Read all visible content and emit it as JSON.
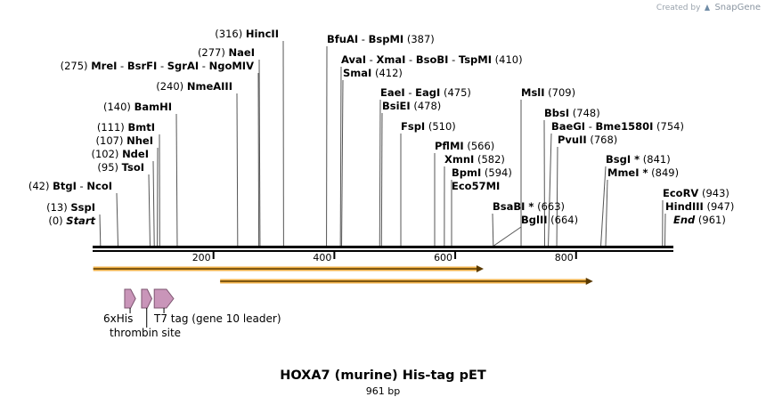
{
  "credit": {
    "prefix": "Created by",
    "brand": "SnapGene"
  },
  "sequence": {
    "length": 961,
    "name": "HOXA7 (murine) His-tag pET",
    "length_label": "961 bp"
  },
  "scale_ticks": [
    {
      "bp": 200,
      "label": "200"
    },
    {
      "bp": 400,
      "label": "400"
    },
    {
      "bp": 600,
      "label": "600"
    },
    {
      "bp": 800,
      "label": "800"
    }
  ],
  "sites": [
    {
      "pos": 0,
      "pos_label": "(0)",
      "names": [
        "Start"
      ],
      "italic": true
    },
    {
      "pos": 13,
      "pos_label": "(13)",
      "names": [
        "SspI"
      ]
    },
    {
      "pos": 42,
      "pos_label": "(42)",
      "names": [
        "BtgI",
        "NcoI"
      ]
    },
    {
      "pos": 95,
      "pos_label": "(95)",
      "names": [
        "TsoI"
      ]
    },
    {
      "pos": 102,
      "pos_label": "(102)",
      "names": [
        "NdeI"
      ]
    },
    {
      "pos": 107,
      "pos_label": "(107)",
      "names": [
        "NheI"
      ]
    },
    {
      "pos": 111,
      "pos_label": "(111)",
      "names": [
        "BmtI"
      ]
    },
    {
      "pos": 140,
      "pos_label": "(140)",
      "names": [
        "BamHI"
      ]
    },
    {
      "pos": 240,
      "pos_label": "(240)",
      "names": [
        "NmeAIII"
      ]
    },
    {
      "pos": 275,
      "pos_label": "(275)",
      "names": [
        "MreI",
        "BsrFI",
        "SgrAI",
        "NgoMIV"
      ]
    },
    {
      "pos": 277,
      "pos_label": "(277)",
      "names": [
        "NaeI"
      ]
    },
    {
      "pos": 316,
      "pos_label": "(316)",
      "names": [
        "HincII"
      ]
    },
    {
      "pos": 387,
      "pos_label": "(387)",
      "names": [
        "BfuAI",
        "BspMI"
      ]
    },
    {
      "pos": 410,
      "pos_label": "(410)",
      "names": [
        "AvaI",
        "XmaI",
        "BsoBI",
        "TspMI"
      ]
    },
    {
      "pos": 412,
      "pos_label": "(412)",
      "names": [
        "SmaI"
      ]
    },
    {
      "pos": 475,
      "pos_label": "(475)",
      "names": [
        "EaeI",
        "EagI"
      ]
    },
    {
      "pos": 478,
      "pos_label": "(478)",
      "names": [
        "BsiEI"
      ]
    },
    {
      "pos": 510,
      "pos_label": "(510)",
      "names": [
        "FspI"
      ]
    },
    {
      "pos": 566,
      "pos_label": "(566)",
      "names": [
        "PflMI"
      ]
    },
    {
      "pos": 582,
      "pos_label": "(582)",
      "names": [
        "XmnI"
      ]
    },
    {
      "pos": 594,
      "pos_label": "(594)",
      "names": [
        "BpmI",
        "Eco57MI"
      ]
    },
    {
      "pos": 663,
      "pos_label": "(663)",
      "names": [
        "BsaBI *"
      ]
    },
    {
      "pos": 664,
      "pos_label": "(664)",
      "names": [
        "BglII"
      ]
    },
    {
      "pos": 709,
      "pos_label": "(709)",
      "names": [
        "MslI"
      ]
    },
    {
      "pos": 748,
      "pos_label": "(748)",
      "names": [
        "BbsI"
      ]
    },
    {
      "pos": 754,
      "pos_label": "(754)",
      "names": [
        "BaeGI",
        "Bme1580I"
      ]
    },
    {
      "pos": 768,
      "pos_label": "(768)",
      "names": [
        "PvuII"
      ]
    },
    {
      "pos": 841,
      "pos_label": "(841)",
      "names": [
        "BsgI *"
      ]
    },
    {
      "pos": 849,
      "pos_label": "(849)",
      "names": [
        "MmeI *"
      ]
    },
    {
      "pos": 943,
      "pos_label": "(943)",
      "names": [
        "EcoRV"
      ]
    },
    {
      "pos": 947,
      "pos_label": "(947)",
      "names": [
        "HindIII"
      ]
    },
    {
      "pos": 961,
      "pos_label": "(961)",
      "names": [
        "End"
      ],
      "italic": true
    }
  ],
  "features": [
    {
      "name": "6xHis",
      "start": 53,
      "end": 71
    },
    {
      "name": "thrombin site",
      "start": 81,
      "end": 98
    },
    {
      "name": "T7 tag (gene 10 leader)",
      "start": 102,
      "end": 134
    }
  ],
  "orfs": [
    {
      "start": 1,
      "end": 647,
      "color": "#f0b24a"
    },
    {
      "start": 211,
      "end": 828,
      "color": "#f0b24a"
    }
  ],
  "colors": {
    "feature_fill": "#c995b9",
    "feature_stroke": "#7d5570",
    "backbone": "#000000"
  }
}
